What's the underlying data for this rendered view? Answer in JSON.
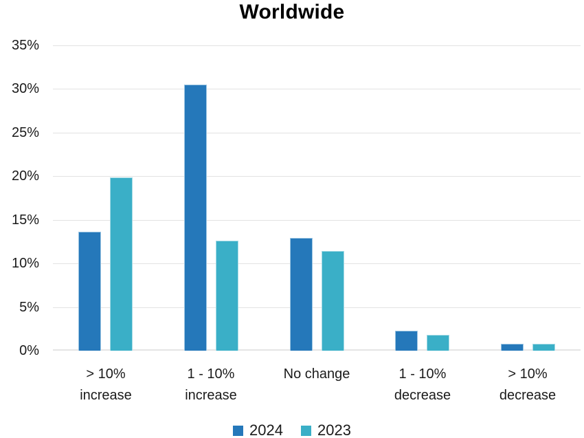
{
  "title": "Worldwide",
  "colors": {
    "series_2024": "#2578BA",
    "series_2024_edge": "#9CC5E2",
    "series_2023": "#3AAFC7",
    "series_2023_edge": "#A6DAE5",
    "gridline": "#e2e2e2",
    "text": "#1a1a1a"
  },
  "chart_data": {
    "type": "bar",
    "title": "Worldwide",
    "categories": [
      "> 10% increase",
      "1 - 10% increase",
      "No change",
      "1 - 10% decrease",
      "> 10% decrease"
    ],
    "series": [
      {
        "name": "2024",
        "color": "#2578BA",
        "edge": "#9CC5E2",
        "values": [
          13.6,
          30.5,
          12.9,
          2.3,
          0.8
        ]
      },
      {
        "name": "2023",
        "color": "#3AAFC7",
        "edge": "#A6DAE5",
        "values": [
          19.9,
          12.6,
          11.4,
          1.8,
          0.8
        ]
      }
    ],
    "xlabel": "",
    "ylabel": "",
    "ylim": [
      0,
      35
    ],
    "ytick_step": 5,
    "ytick_suffix": "%",
    "grid": true,
    "legend_position": "bottom",
    "legend_labels": [
      "2024",
      "2023"
    ]
  }
}
